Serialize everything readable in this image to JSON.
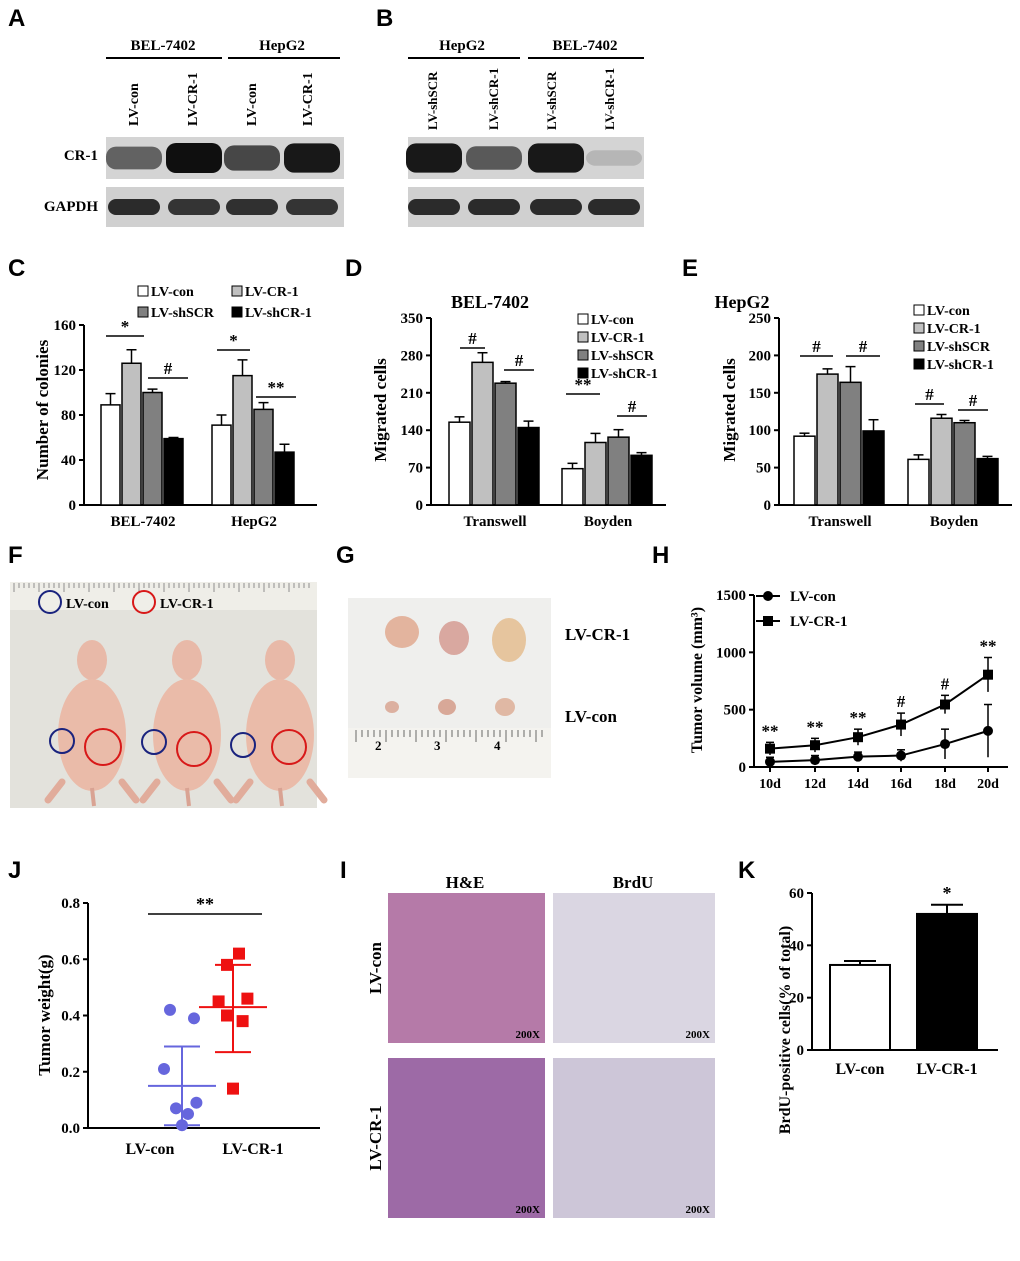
{
  "panels": {
    "A": "A",
    "B": "B",
    "C": "C",
    "D": "D",
    "E": "E",
    "F": "F",
    "G": "G",
    "H": "H",
    "J": "J",
    "I": "I",
    "K": "K"
  },
  "blot_a": {
    "groups": [
      "BEL-7402",
      "HepG2"
    ],
    "lanes": [
      "LV-con",
      "LV-CR-1",
      "LV-con",
      "LV-CR-1"
    ],
    "rows": [
      "CR-1",
      "GAPDH"
    ],
    "cr1_intensity": [
      0.55,
      1.0,
      0.7,
      0.95
    ],
    "gapdh_intensity": [
      0.85,
      0.8,
      0.82,
      0.8
    ]
  },
  "blot_b": {
    "groups": [
      "HepG2",
      "BEL-7402"
    ],
    "lanes": [
      "LV-shSCR",
      "LV-shCR-1",
      "LV-shSCR",
      "LV-shCR-1"
    ],
    "cr1_intensity": [
      0.95,
      0.6,
      0.95,
      0.1
    ],
    "gapdh_intensity": [
      0.85,
      0.85,
      0.85,
      0.85
    ]
  },
  "chart_data": [
    {
      "panel": "C",
      "type": "bar",
      "ylabel": "Number of colonies",
      "ylim": [
        0,
        160
      ],
      "yticks": [
        "0",
        "40",
        "80",
        "120",
        "160"
      ],
      "categories": [
        "BEL-7402",
        "HepG2"
      ],
      "legend": [
        "LV-con",
        "LV-CR-1",
        "LV-shSCR",
        "LV-shCR-1"
      ],
      "series": [
        {
          "name": "LV-con",
          "values": [
            89,
            71
          ],
          "errors": [
            10,
            9
          ],
          "color": "#ffffff"
        },
        {
          "name": "LV-CR-1",
          "values": [
            126,
            115
          ],
          "errors": [
            12,
            14
          ],
          "color": "#c0c0c0"
        },
        {
          "name": "LV-shSCR",
          "values": [
            100,
            85
          ],
          "errors": [
            3,
            6
          ],
          "color": "#808080"
        },
        {
          "name": "LV-shCR-1",
          "values": [
            59,
            47
          ],
          "errors": [
            1,
            7
          ],
          "color": "#000000"
        }
      ],
      "annotations": [
        "*",
        "#",
        "*",
        "**"
      ]
    },
    {
      "panel": "D",
      "type": "bar",
      "title": "BEL-7402",
      "ylabel": "Migrated cells",
      "ylim": [
        0,
        350
      ],
      "yticks": [
        "0",
        "70",
        "140",
        "210",
        "280",
        "350"
      ],
      "categories": [
        "Transwell",
        "Boyden"
      ],
      "legend": [
        "LV-con",
        "LV-CR-1",
        "LV-shSCR",
        "LV-shCR-1"
      ],
      "series": [
        {
          "name": "LV-con",
          "values": [
            155,
            68
          ],
          "errors": [
            10,
            10
          ],
          "color": "#ffffff"
        },
        {
          "name": "LV-CR-1",
          "values": [
            267,
            117
          ],
          "errors": [
            18,
            17
          ],
          "color": "#c0c0c0"
        },
        {
          "name": "LV-shSCR",
          "values": [
            228,
            127
          ],
          "errors": [
            3,
            14
          ],
          "color": "#808080"
        },
        {
          "name": "LV-shCR-1",
          "values": [
            145,
            93
          ],
          "errors": [
            12,
            5
          ],
          "color": "#000000"
        }
      ],
      "annotations": [
        "#",
        "#",
        "**",
        "#"
      ]
    },
    {
      "panel": "E",
      "type": "bar",
      "title": "HepG2",
      "ylabel": "Migrated cells",
      "ylim": [
        0,
        250
      ],
      "yticks": [
        "0",
        "50",
        "100",
        "150",
        "200",
        "250"
      ],
      "categories": [
        "Transwell",
        "Boyden"
      ],
      "legend": [
        "LV-con",
        "LV-CR-1",
        "LV-shSCR",
        "LV-shCR-1"
      ],
      "series": [
        {
          "name": "LV-con",
          "values": [
            92,
            61
          ],
          "errors": [
            4,
            6
          ],
          "color": "#ffffff"
        },
        {
          "name": "LV-CR-1",
          "values": [
            175,
            116
          ],
          "errors": [
            7,
            5
          ],
          "color": "#c0c0c0"
        },
        {
          "name": "LV-shSCR",
          "values": [
            164,
            110
          ],
          "errors": [
            21,
            3
          ],
          "color": "#808080"
        },
        {
          "name": "LV-shCR-1",
          "values": [
            99,
            62
          ],
          "errors": [
            15,
            3
          ],
          "color": "#000000"
        }
      ],
      "annotations": [
        "#",
        "#",
        "#",
        "#"
      ]
    },
    {
      "panel": "H",
      "type": "line",
      "ylabel": "Tumor volume (mm³)",
      "ylim": [
        0,
        1500
      ],
      "yticks": [
        "0",
        "500",
        "1000",
        "1500"
      ],
      "categories": [
        "10d",
        "12d",
        "14d",
        "16d",
        "18d",
        "20d"
      ],
      "series": [
        {
          "name": "LV-con",
          "values": [
            45,
            60,
            90,
            100,
            200,
            315
          ],
          "errors": [
            40,
            40,
            40,
            50,
            130,
            230
          ],
          "marker": "circle"
        },
        {
          "name": "LV-CR-1",
          "values": [
            160,
            190,
            260,
            370,
            545,
            805
          ],
          "errors": [
            55,
            60,
            70,
            100,
            80,
            150
          ],
          "marker": "square"
        }
      ],
      "annotations": [
        "**",
        "**",
        "**",
        "#",
        "#",
        "**"
      ]
    },
    {
      "panel": "J",
      "type": "scatter",
      "ylabel": "Tumor weight(g)",
      "ylim": [
        0,
        0.8
      ],
      "yticks": [
        "0.0",
        "0.2",
        "0.4",
        "0.6",
        "0.8"
      ],
      "categories": [
        "LV-con",
        "LV-CR-1"
      ],
      "series": [
        {
          "name": "LV-con",
          "points": [
            [
              -0.1,
              0.42
            ],
            [
              0.1,
              0.39
            ],
            [
              -0.15,
              0.21
            ],
            [
              0.12,
              0.09
            ],
            [
              -0.05,
              0.07
            ],
            [
              0.05,
              0.05
            ],
            [
              0.0,
              0.01
            ]
          ],
          "mean": 0.15,
          "sd_low": 0.01,
          "sd_high": 0.29,
          "color": "#6666dd"
        },
        {
          "name": "LV-CR-1",
          "points": [
            [
              0.05,
              0.62
            ],
            [
              -0.05,
              0.58
            ],
            [
              0.12,
              0.46
            ],
            [
              -0.12,
              0.45
            ],
            [
              -0.05,
              0.4
            ],
            [
              0.08,
              0.38
            ],
            [
              0.0,
              0.14
            ]
          ],
          "mean": 0.43,
          "sd_low": 0.27,
          "sd_high": 0.58,
          "color": "#ee1111"
        }
      ],
      "annotations": [
        "**"
      ]
    },
    {
      "panel": "K",
      "type": "bar",
      "ylabel": "BrdU-positive cells(% of total)",
      "ylim": [
        0,
        60
      ],
      "yticks": [
        "0",
        "20",
        "40",
        "60"
      ],
      "categories": [
        "LV-con",
        "LV-CR-1"
      ],
      "series": [
        {
          "values": [
            32.5,
            52
          ],
          "errors": [
            1.5,
            3.5
          ],
          "colors": [
            "#ffffff",
            "#000000"
          ]
        }
      ],
      "annotations": [
        "*"
      ]
    }
  ],
  "photo_f": {
    "legend": [
      "LV-con",
      "LV-CR-1"
    ],
    "ring_colors": [
      "#1a237e",
      "#d81818"
    ]
  },
  "photo_g": {
    "rows": [
      "LV-CR-1",
      "LV-con"
    ],
    "ruler_labels": [
      "2",
      "3",
      "4"
    ]
  },
  "panel_i": {
    "columns": [
      "H&E",
      "BrdU"
    ],
    "rows": [
      "LV-con",
      "LV-CR-1"
    ],
    "magnification": "200X"
  }
}
